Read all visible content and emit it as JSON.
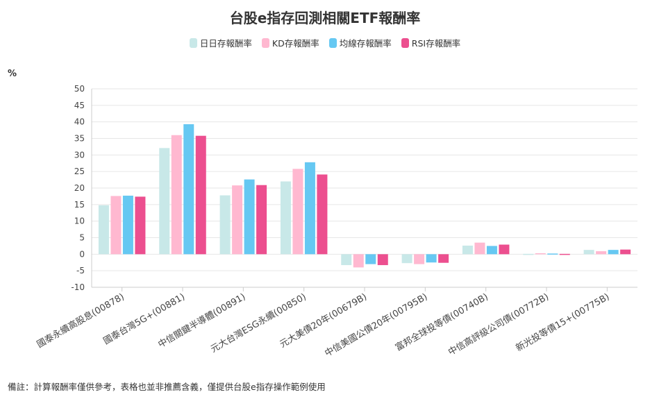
{
  "chart_data": {
    "type": "bar",
    "title": "台股e指存回測相關ETF報酬率",
    "ylabel": "%",
    "ylim": [
      -10,
      50
    ],
    "yticks": [
      50,
      45,
      40,
      35,
      30,
      25,
      20,
      15,
      10,
      5,
      0,
      -5,
      -10
    ],
    "grid": true,
    "legend_position": "top-center",
    "categories": [
      "國泰永續高股息(00878)",
      "國泰台灣5G+(00881)",
      "中信關鍵半導體(00891)",
      "元大台灣ESG永續(00850)",
      "元大美債20年(00679B)",
      "中信美國公債20年(00795B)",
      "富邦全球投等債(00740B)",
      "中信高評級公司債(00772B)",
      "新光投等債15+(00775B)"
    ],
    "series": [
      {
        "name": "日日存報酬率",
        "color": "#c8e8e8",
        "values": [
          14.8,
          32.1,
          17.8,
          22.0,
          -3.3,
          -2.7,
          2.6,
          0.1,
          1.3
        ]
      },
      {
        "name": "KD存報酬率",
        "color": "#ffb8d0",
        "values": [
          17.6,
          36.0,
          20.8,
          25.8,
          -4.0,
          -3.0,
          3.5,
          0.3,
          0.9
        ]
      },
      {
        "name": "均線存報酬率",
        "color": "#66c8f2",
        "values": [
          17.7,
          39.3,
          22.6,
          27.8,
          -3.0,
          -2.5,
          2.5,
          0.2,
          1.3
        ]
      },
      {
        "name": "RSI存報酬率",
        "color": "#ec4f8f",
        "values": [
          17.4,
          35.8,
          20.9,
          24.1,
          -3.3,
          -2.6,
          2.9,
          0.1,
          1.4
        ]
      }
    ]
  },
  "footnote": "備註：計算報酬率僅供參考，表格也並非推薦含義，僅提供台股e指存操作範例使用"
}
